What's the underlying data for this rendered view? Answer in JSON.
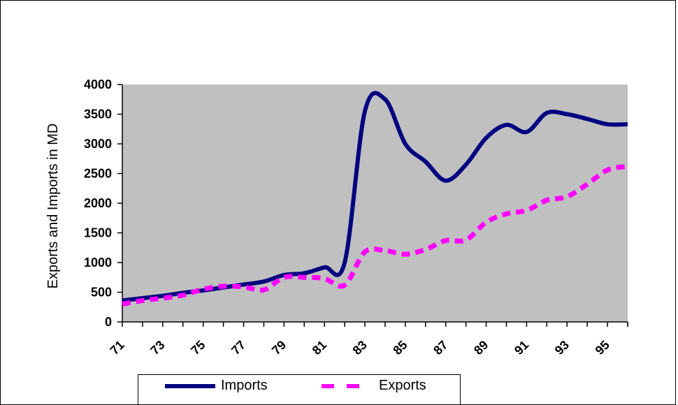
{
  "chart_data": {
    "type": "line",
    "title": "",
    "xlabel": "",
    "ylabel": "Exports and Imports in MD",
    "x": [
      71,
      72,
      73,
      74,
      75,
      76,
      77,
      78,
      79,
      80,
      81,
      82,
      83,
      84,
      85,
      86,
      87,
      88,
      89,
      90,
      91,
      92,
      93,
      94,
      95,
      96
    ],
    "x_tick_labels": [
      "71",
      "73",
      "75",
      "77",
      "79",
      "81",
      "83",
      "85",
      "87",
      "89",
      "91",
      "93",
      "95"
    ],
    "ylim": [
      0,
      4000
    ],
    "y_ticks": [
      0,
      500,
      1000,
      1500,
      2000,
      2500,
      3000,
      3500,
      4000
    ],
    "grid": false,
    "plot_background": "#c0c0c0",
    "legend_position": "bottom",
    "series": [
      {
        "name": "Imports",
        "style": "solid",
        "color": "#000080",
        "values": [
          360,
          400,
          440,
          490,
          530,
          580,
          630,
          680,
          790,
          820,
          920,
          1000,
          3550,
          3750,
          3000,
          2700,
          2380,
          2650,
          3100,
          3320,
          3200,
          3520,
          3500,
          3420,
          3330,
          3330
        ]
      },
      {
        "name": "Exports",
        "style": "dashed",
        "color": "#ff00ff",
        "values": [
          300,
          360,
          400,
          450,
          550,
          600,
          590,
          540,
          750,
          750,
          730,
          620,
          1180,
          1200,
          1140,
          1220,
          1370,
          1380,
          1680,
          1820,
          1880,
          2050,
          2110,
          2320,
          2560,
          2620
        ]
      }
    ]
  }
}
